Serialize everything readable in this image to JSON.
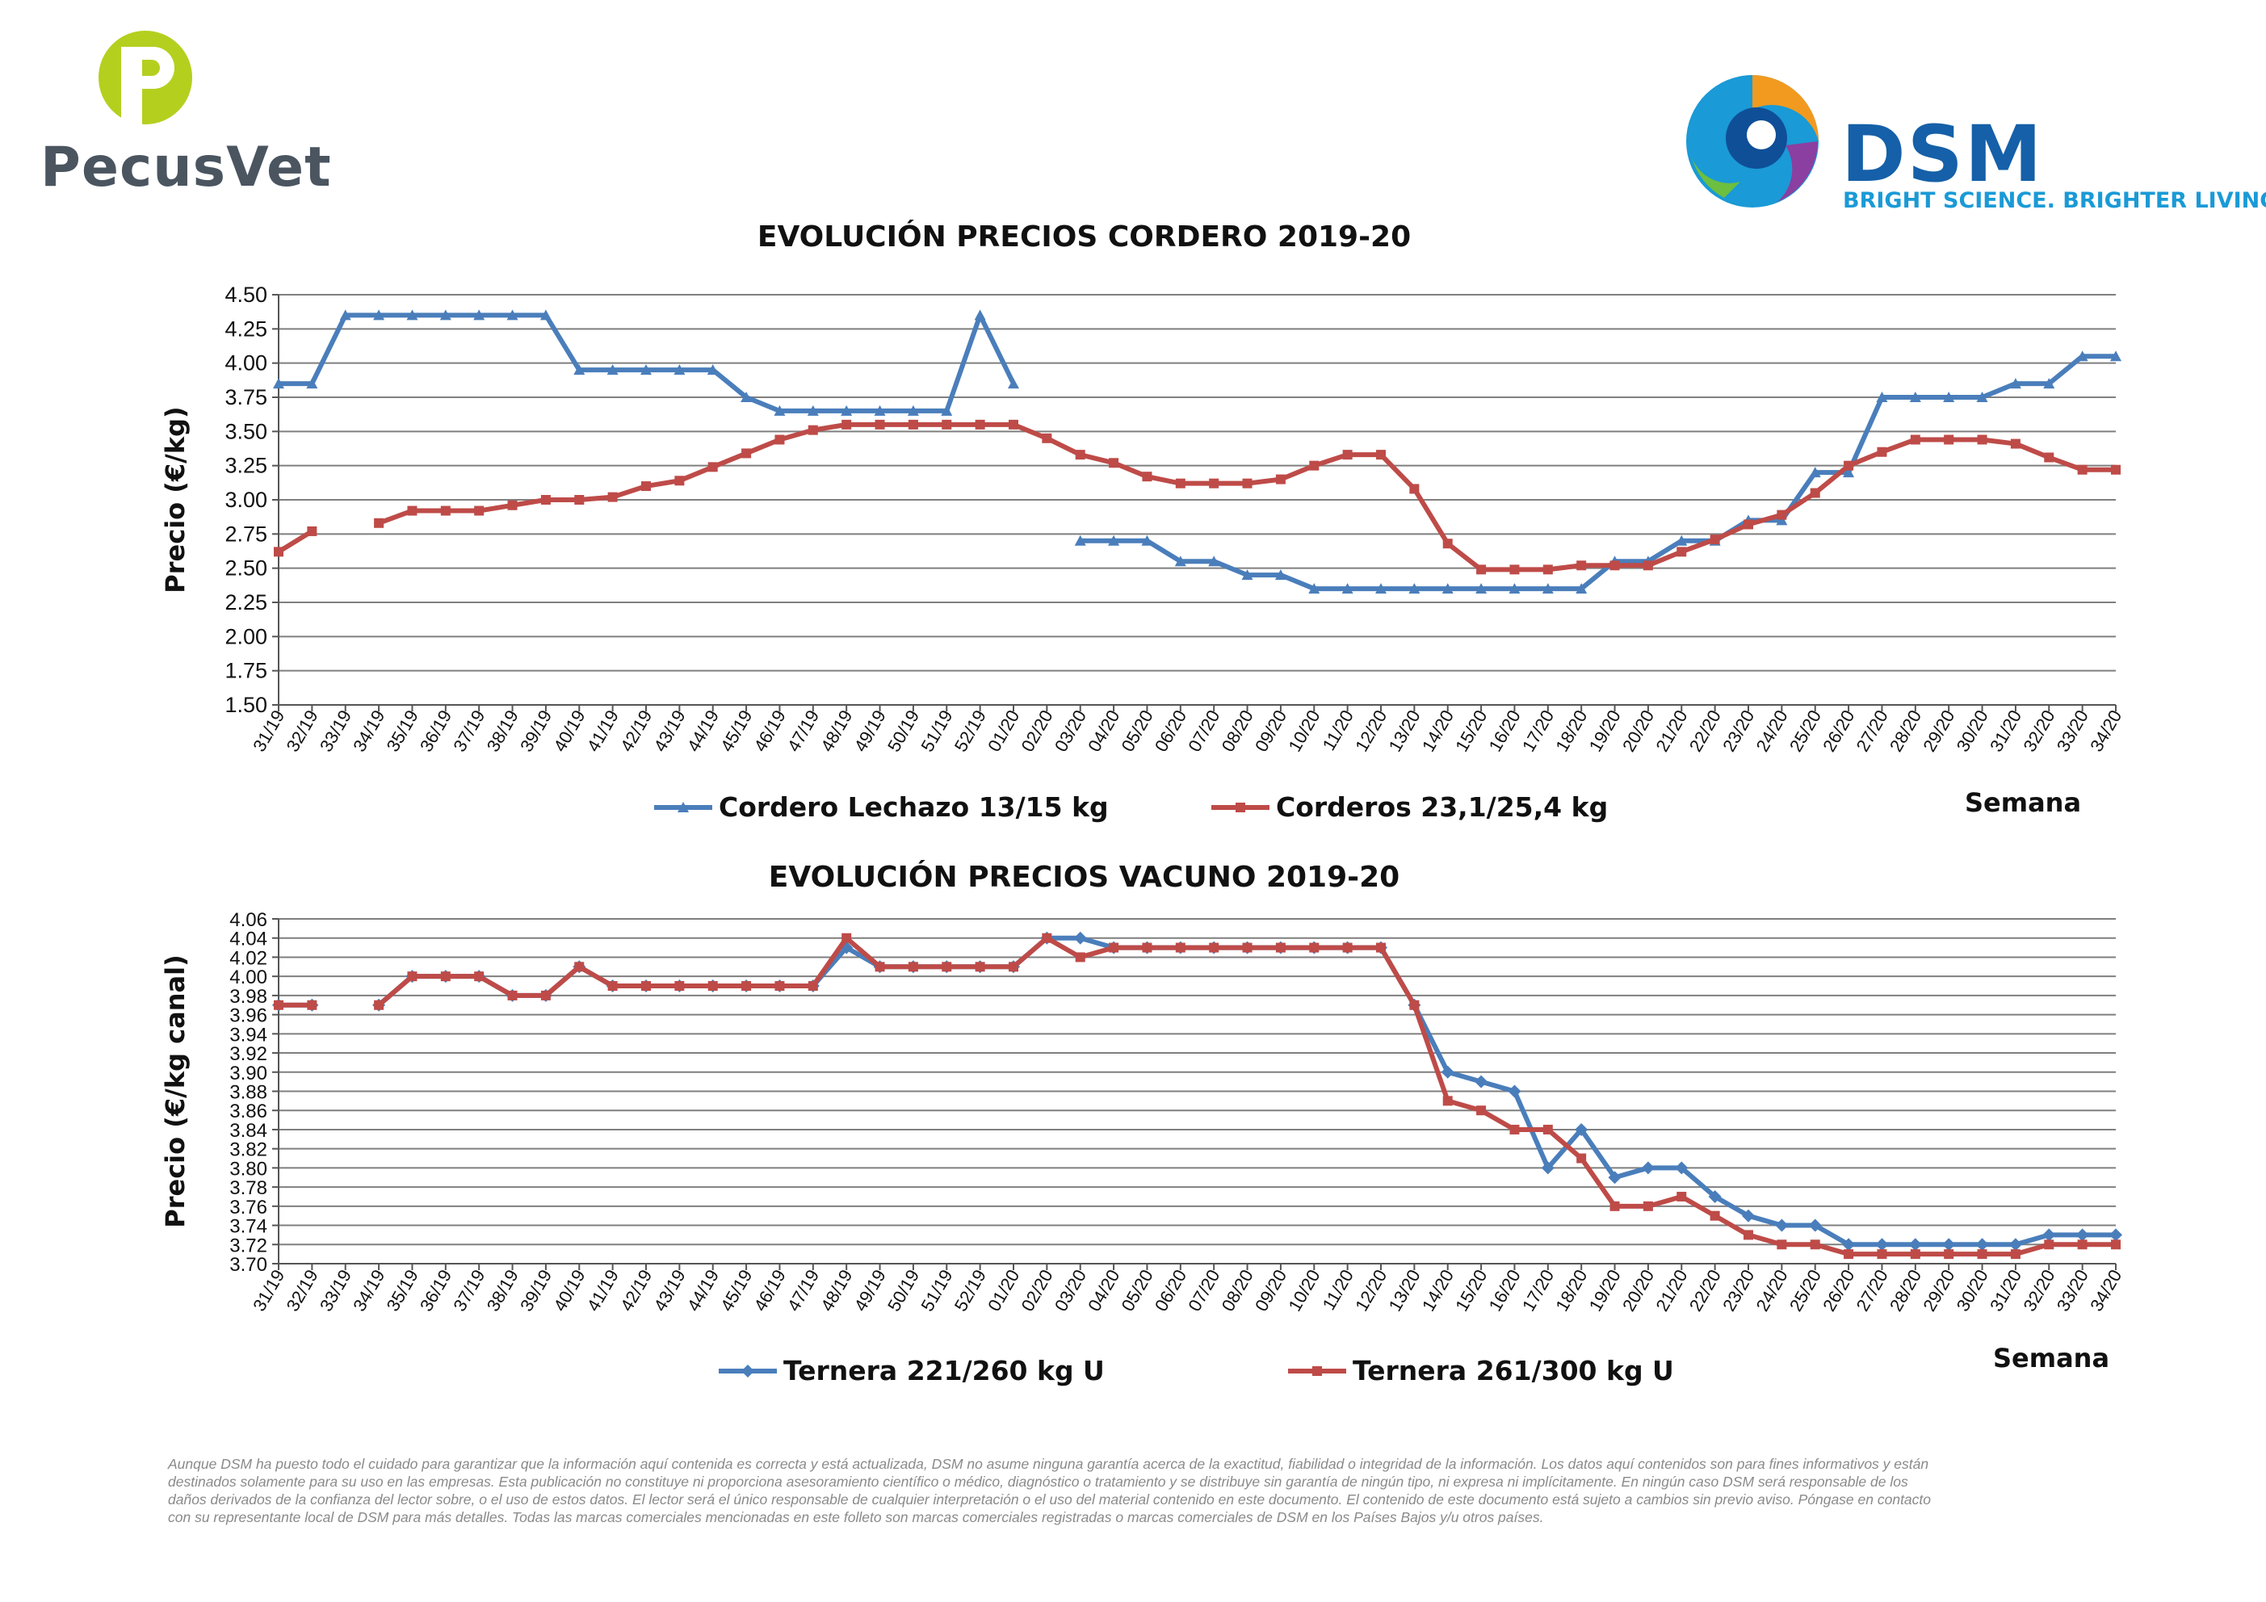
{
  "logos": {
    "pecusvet": "PecusVet",
    "dsm": "DSM",
    "dsm_tagline": "BRIGHT SCIENCE. BRIGHTER LIVING.",
    "colors": {
      "pecus_green": "#b5cf1f",
      "pecus_grey": "#4a5560",
      "dsm_blue": "#1560a8",
      "dsm_cyan": "#1a9ad6"
    }
  },
  "colors": {
    "series_blue": "#4a7ebb",
    "series_red": "#be4b48",
    "grid": "#7f7f7f"
  },
  "chart_data": [
    {
      "type": "line",
      "title": "EVOLUCIÓN PRECIOS CORDERO 2019-20",
      "ylabel": "Precio (€/kg)",
      "xlabel": "Semana",
      "ylim": [
        1.5,
        4.5
      ],
      "yticks": [
        "4.50",
        "4.25",
        "4.00",
        "3.75",
        "3.50",
        "3.25",
        "3.00",
        "2.75",
        "2.50",
        "2.25",
        "2.00",
        "1.75",
        "1.50"
      ],
      "legend_position": "bottom",
      "categories": [
        "31/19",
        "32/19",
        "33/19",
        "34/19",
        "35/19",
        "36/19",
        "37/19",
        "38/19",
        "39/19",
        "40/19",
        "41/19",
        "42/19",
        "43/19",
        "44/19",
        "45/19",
        "46/19",
        "47/19",
        "48/19",
        "49/19",
        "50/19",
        "51/19",
        "52/19",
        "01/20",
        "02/20",
        "03/20",
        "04/20",
        "05/20",
        "06/20",
        "07/20",
        "08/20",
        "09/20",
        "10/20",
        "11/20",
        "12/20",
        "13/20",
        "14/20",
        "15/20",
        "16/20",
        "17/20",
        "18/20",
        "19/20",
        "20/20",
        "21/20",
        "22/20",
        "23/20",
        "24/20",
        "25/20",
        "26/20",
        "27/20",
        "28/20",
        "29/20",
        "30/20",
        "31/20",
        "32/20",
        "33/20",
        "34/20"
      ],
      "series": [
        {
          "name": "Cordero Lechazo 13/15 kg",
          "color": "#4a7ebb",
          "marker": "triangle",
          "values": [
            3.85,
            3.85,
            4.35,
            4.35,
            4.35,
            4.35,
            4.35,
            4.35,
            4.35,
            3.95,
            3.95,
            3.95,
            3.95,
            3.95,
            3.75,
            3.65,
            3.65,
            3.65,
            3.65,
            3.65,
            3.65,
            4.35,
            3.85,
            null,
            2.7,
            2.7,
            2.7,
            2.55,
            2.55,
            2.45,
            2.45,
            2.35,
            2.35,
            2.35,
            2.35,
            2.35,
            2.35,
            2.35,
            2.35,
            2.35,
            2.55,
            2.55,
            2.7,
            2.7,
            2.85,
            2.85,
            3.2,
            3.2,
            3.75,
            3.75,
            3.75,
            3.75,
            3.85,
            3.85,
            4.05,
            4.05
          ]
        },
        {
          "name": "Corderos 23,1/25,4 kg",
          "color": "#be4b48",
          "marker": "square",
          "values": [
            2.62,
            2.77,
            null,
            2.83,
            2.92,
            2.92,
            2.92,
            2.96,
            3.0,
            3.0,
            3.02,
            3.1,
            3.14,
            3.24,
            3.34,
            3.44,
            3.51,
            3.55,
            3.55,
            3.55,
            3.55,
            3.55,
            3.55,
            3.45,
            3.33,
            3.27,
            3.17,
            3.12,
            3.12,
            3.12,
            3.15,
            3.25,
            3.33,
            3.33,
            3.08,
            2.68,
            2.49,
            2.49,
            2.49,
            2.52,
            2.52,
            2.52,
            2.62,
            2.71,
            2.82,
            2.89,
            3.05,
            3.25,
            3.35,
            3.44,
            3.44,
            3.44,
            3.41,
            3.31,
            3.22,
            3.22
          ]
        }
      ]
    },
    {
      "type": "line",
      "title": "EVOLUCIÓN PRECIOS VACUNO 2019-20",
      "ylabel": "Precio (€/kg canal)",
      "xlabel": "Semana",
      "ylim": [
        3.7,
        4.06
      ],
      "yticks": [
        "4.06",
        "4.04",
        "4.02",
        "4.00",
        "3.98",
        "3.96",
        "3.94",
        "3.92",
        "3.90",
        "3.88",
        "3.86",
        "3.84",
        "3.82",
        "3.80",
        "3.78",
        "3.76",
        "3.74",
        "3.72",
        "3.70"
      ],
      "legend_position": "bottom",
      "categories": [
        "31/19",
        "32/19",
        "33/19",
        "34/19",
        "35/19",
        "36/19",
        "37/19",
        "38/19",
        "39/19",
        "40/19",
        "41/19",
        "42/19",
        "43/19",
        "44/19",
        "45/19",
        "46/19",
        "47/19",
        "48/19",
        "49/19",
        "50/19",
        "51/19",
        "52/19",
        "01/20",
        "02/20",
        "03/20",
        "04/20",
        "05/20",
        "06/20",
        "07/20",
        "08/20",
        "09/20",
        "10/20",
        "11/20",
        "12/20",
        "13/20",
        "14/20",
        "15/20",
        "16/20",
        "17/20",
        "18/20",
        "19/20",
        "20/20",
        "21/20",
        "22/20",
        "23/20",
        "24/20",
        "25/20",
        "26/20",
        "27/20",
        "28/20",
        "29/20",
        "30/20",
        "31/20",
        "32/20",
        "33/20",
        "34/20"
      ],
      "series": [
        {
          "name": "Ternera 221/260 kg U",
          "color": "#4a7ebb",
          "marker": "diamond",
          "values": [
            3.97,
            3.97,
            null,
            3.97,
            4.0,
            4.0,
            4.0,
            3.98,
            3.98,
            4.01,
            3.99,
            3.99,
            3.99,
            3.99,
            3.99,
            3.99,
            3.99,
            4.03,
            4.01,
            4.01,
            4.01,
            4.01,
            4.01,
            4.04,
            4.04,
            4.03,
            4.03,
            4.03,
            4.03,
            4.03,
            4.03,
            4.03,
            4.03,
            4.03,
            3.97,
            3.9,
            3.89,
            3.88,
            3.8,
            3.84,
            3.79,
            3.8,
            3.8,
            3.77,
            3.75,
            3.74,
            3.74,
            3.72,
            3.72,
            3.72,
            3.72,
            3.72,
            3.72,
            3.73,
            3.73,
            3.73
          ]
        },
        {
          "name": "Ternera 261/300 kg U",
          "color": "#be4b48",
          "marker": "square",
          "values": [
            3.97,
            3.97,
            null,
            3.97,
            4.0,
            4.0,
            4.0,
            3.98,
            3.98,
            4.01,
            3.99,
            3.99,
            3.99,
            3.99,
            3.99,
            3.99,
            3.99,
            4.04,
            4.01,
            4.01,
            4.01,
            4.01,
            4.01,
            4.04,
            4.02,
            4.03,
            4.03,
            4.03,
            4.03,
            4.03,
            4.03,
            4.03,
            4.03,
            4.03,
            3.97,
            3.87,
            3.86,
            3.84,
            3.84,
            3.81,
            3.76,
            3.76,
            3.77,
            3.75,
            3.73,
            3.72,
            3.72,
            3.71,
            3.71,
            3.71,
            3.71,
            3.71,
            3.71,
            3.72,
            3.72,
            3.72
          ]
        }
      ]
    }
  ],
  "disclaimer_lines": [
    "Aunque DSM ha puesto todo el cuidado para garantizar que la información aquí contenida es correcta y está actualizada, DSM no asume ninguna garantía acerca de la exactitud, fiabilidad o integridad de la información. Los datos aquí contenidos son para fines informativos y están",
    "destinados solamente para su uso en las empresas. Esta publicación no constituye ni proporciona asesoramiento científico o médico, diagnóstico o tratamiento y se distribuye sin garantía de ningún tipo, ni expresa ni implícitamente. En ningún caso DSM será responsable de los",
    "daños derivados de la confianza del lector sobre, o el uso de estos datos. El lector será el único responsable de cualquier interpretación o el uso del material contenido en este documento. El contenido de este documento está sujeto a cambios sin previo aviso. Póngase en contacto",
    "con su representante local de DSM para más detalles. Todas las marcas comerciales mencionadas en este folleto son marcas comerciales registradas o marcas comerciales de DSM en los Países Bajos y/u otros países."
  ]
}
